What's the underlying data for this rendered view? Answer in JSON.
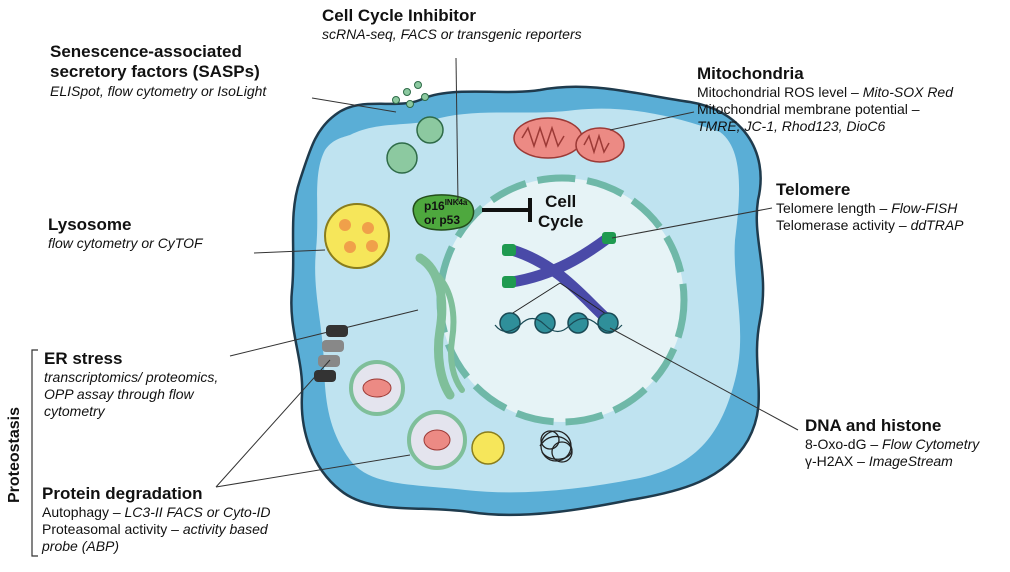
{
  "labels": {
    "cell_cycle": {
      "title": "Cell Cycle Inhibitor",
      "sub": "scRNA-seq, FACS or transgenic reporters"
    },
    "sasps": {
      "title_line1": "Senescence-associated",
      "title_line2": "secretory factors (SASPs)",
      "sub": "ELISpot, flow cytometry or IsoLight"
    },
    "mitochondria": {
      "title": "Mitochondria",
      "l1_plain": "Mitochondrial ROS level – ",
      "l1_italic": "Mito-SOX Red",
      "l2_plain": "Mitochondrial membrane potential –",
      "l3_italic": "TMRE, JC-1, Rhod123, DioC6"
    },
    "telomere": {
      "title": "Telomere",
      "l1_plain": "Telomere length – ",
      "l1_italic": "Flow-FISH",
      "l2_plain": "Telomerase activity – ",
      "l2_italic": "ddTRAP"
    },
    "lysosome": {
      "title": "Lysosome",
      "sub": "flow cytometry or CyTOF"
    },
    "er_stress": {
      "title": "ER stress",
      "l1": "transcriptomics/ proteomics,",
      "l2": "OPP assay through flow",
      "l3": "cytometry"
    },
    "protein_degradation": {
      "title": "Protein degradation",
      "l1_plain": "Autophagy – ",
      "l1_italic": "LC3-II FACS or Cyto-ID",
      "l2_plain": "Proteasomal activity – ",
      "l2_italic": "activity based",
      "l3_italic": "probe (ABP)"
    },
    "dna_histone": {
      "title": "DNA and histone",
      "l1_plain": "8-Oxo-dG – ",
      "l1_italic": "Flow Cytometry",
      "l2_plain": "γ-H2AX – ",
      "l2_italic": "ImageStream"
    },
    "proteostasis": "Proteostasis"
  },
  "cell": {
    "p16_main": "p16",
    "p16_sup": "INK4a",
    "p16_line2": "or p53",
    "cell_cycle_line1": "Cell",
    "cell_cycle_line2": "Cycle"
  },
  "colors": {
    "cell_outer": "#5aaed6",
    "cell_inner": "#bfe3f0",
    "nucleus": "#e6f3f6",
    "envelope": "#6fb8a8",
    "mito": "#ec8a84",
    "lysosome": "#f6e65a",
    "chromosome": "#4a4aa8",
    "telomere_cap": "#1f9a50",
    "histone": "#2f8f9a",
    "p16": "#4ea83e",
    "sasp": "#8cc9a0"
  }
}
